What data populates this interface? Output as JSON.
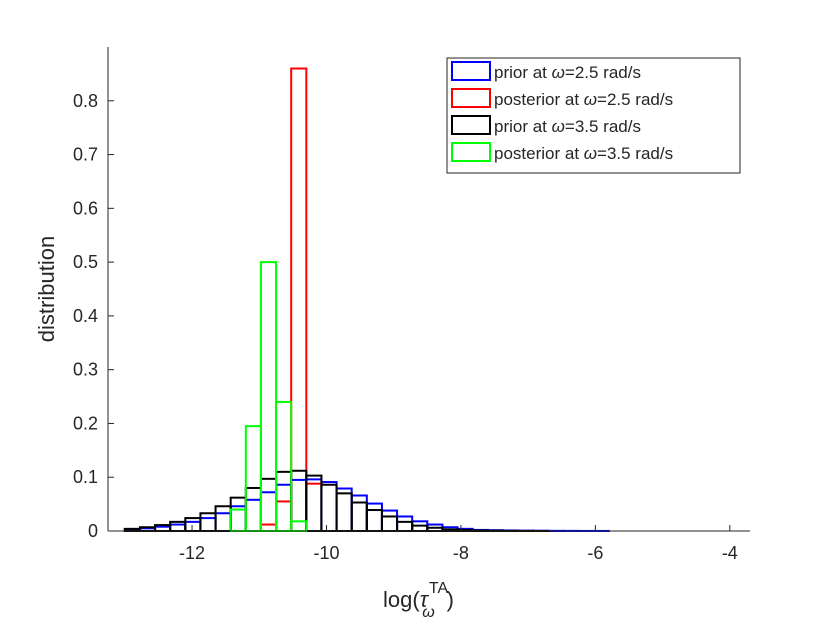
{
  "chart_data": {
    "type": "histogram",
    "title": "",
    "xlabel": "log(τ_ω^TA)",
    "ylabel": "distribution",
    "xlabel_parts": {
      "prefix": "log(",
      "symbol": "τ",
      "superscript": "TA",
      "subscript": "ω",
      "suffix": ")"
    },
    "xlim": [
      -13.25,
      -3.7
    ],
    "ylim": [
      0,
      0.9
    ],
    "xticks": [
      -12,
      -10,
      -8,
      -6,
      -4
    ],
    "xtick_labels": [
      "-12",
      "-10",
      "-8",
      "-6",
      "-4"
    ],
    "yticks": [
      0,
      0.1,
      0.2,
      0.3,
      0.4,
      0.5,
      0.6,
      0.7,
      0.8
    ],
    "ytick_labels": [
      "0",
      "0.1",
      "0.2",
      "0.3",
      "0.4",
      "0.5",
      "0.6",
      "0.7",
      "0.8"
    ],
    "grid": false,
    "legend_position": "top-right",
    "bin_edges": [
      -13,
      -12.775,
      -12.55,
      -12.325,
      -12.1,
      -11.875,
      -11.65,
      -11.425,
      -11.2,
      -10.975,
      -10.75,
      -10.525,
      -10.3,
      -10.075,
      -9.85,
      -9.625,
      -9.4,
      -9.175,
      -8.95,
      -8.725,
      -8.5,
      -8.275,
      -8.05,
      -7.825,
      -7.6,
      -7.375,
      -7.15,
      -6.925,
      -6.7,
      -6.475,
      -6.25,
      -6.025,
      -5.8,
      -5.575,
      -5.35,
      -5.125,
      -4.9,
      -4.675,
      -4.45,
      -4.225,
      -4.0
    ],
    "series": [
      {
        "name": "prior at ω=2.5 rad/s",
        "legend_prefix": "prior at ",
        "legend_value": "=2.5 rad/s",
        "color": "#0000ff",
        "values": [
          0.003,
          0.005,
          0.008,
          0.012,
          0.017,
          0.024,
          0.033,
          0.046,
          0.058,
          0.072,
          0.086,
          0.095,
          0.096,
          0.091,
          0.079,
          0.066,
          0.051,
          0.038,
          0.027,
          0.018,
          0.012,
          0.007,
          0.004,
          0.002,
          0.0015,
          0.001,
          0.0007,
          0.0005,
          0.0003,
          0.0002,
          0.0001,
          0.0001,
          0,
          0,
          0,
          0,
          0,
          0,
          0,
          0
        ]
      },
      {
        "name": "posterior at ω=2.5 rad/s",
        "legend_prefix": "posterior at ",
        "legend_value": "=2.5 rad/s",
        "color": "#ff0000",
        "values": [
          0,
          0,
          0,
          0,
          0,
          0,
          0,
          0,
          0,
          0.012,
          0.055,
          0.86,
          0.088,
          0,
          0,
          0,
          0,
          0,
          0,
          0,
          0,
          0,
          0,
          0,
          0,
          0,
          0,
          0,
          0,
          0,
          0,
          0,
          0,
          0,
          0,
          0,
          0,
          0,
          0,
          0
        ]
      },
      {
        "name": "prior at ω=3.5 rad/s",
        "legend_prefix": "prior at ",
        "legend_value": "=3.5 rad/s",
        "color": "#000000",
        "values": [
          0.004,
          0.007,
          0.011,
          0.017,
          0.024,
          0.033,
          0.046,
          0.062,
          0.08,
          0.097,
          0.11,
          0.112,
          0.103,
          0.086,
          0.07,
          0.053,
          0.039,
          0.027,
          0.017,
          0.01,
          0.006,
          0.003,
          0.002,
          0.001,
          0.0007,
          0.0004,
          0.0002,
          0.0001,
          0,
          0,
          0,
          0,
          0,
          0,
          0,
          0,
          0,
          0,
          0,
          0
        ]
      },
      {
        "name": "posterior at ω=3.5 rad/s",
        "legend_prefix": "posterior at ",
        "legend_value": "=3.5 rad/s",
        "color": "#00ff00",
        "values": [
          0,
          0,
          0,
          0,
          0,
          0,
          0,
          0.04,
          0.195,
          0.5,
          0.24,
          0.018,
          0,
          0,
          0,
          0,
          0,
          0,
          0,
          0,
          0,
          0,
          0,
          0,
          0,
          0,
          0,
          0,
          0,
          0,
          0,
          0,
          0,
          0,
          0,
          0,
          0,
          0,
          0,
          0
        ]
      }
    ]
  },
  "legend": {
    "omega_symbol": "ω"
  }
}
